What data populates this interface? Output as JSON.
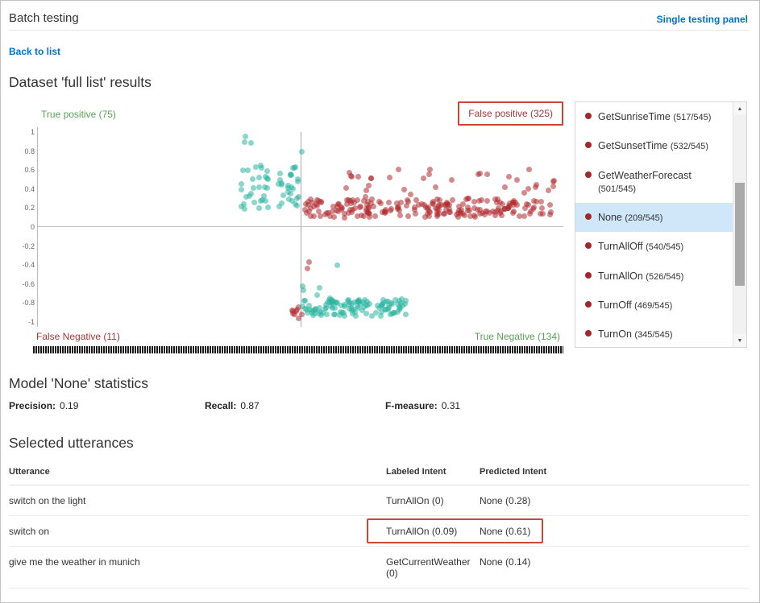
{
  "header": {
    "title": "Batch testing",
    "single_testing_link": "Single testing panel"
  },
  "nav": {
    "back_link": "Back to list"
  },
  "results": {
    "heading": "Dataset 'full list' results"
  },
  "chart": {
    "quadrants": {
      "true_positive": "True positive (75)",
      "false_positive": "False positive (325)",
      "false_negative": "False Negative (11)",
      "true_negative": "True Negative (134)"
    },
    "y_ticks": [
      "1",
      "0.8",
      "0.6",
      "0.4",
      "0.2",
      "0",
      "-0.2",
      "-0.4",
      "-0.6",
      "-0.8",
      "-1"
    ]
  },
  "chart_data": {
    "type": "scatter",
    "x_range": [
      0,
      1
    ],
    "y_range": [
      -1,
      1
    ],
    "quadrant_counts": {
      "true_positive": 75,
      "false_positive": 325,
      "false_negative": 11,
      "true_negative": 134
    },
    "clusters": [
      {
        "name": "true-positive-left-blob",
        "color": "teal",
        "count": 30,
        "x": [
          0.385,
          0.445
        ],
        "y": [
          0.18,
          0.65
        ]
      },
      {
        "name": "true-positive-right-blob",
        "color": "teal",
        "count": 28,
        "x": [
          0.455,
          0.5
        ],
        "y": [
          0.2,
          0.65
        ]
      },
      {
        "name": "true-positive-high-outliers",
        "color": "teal",
        "count": 3,
        "x": [
          0.39,
          0.41
        ],
        "y": [
          0.8,
          0.95
        ]
      },
      {
        "name": "true-positive-center-high",
        "color": "teal",
        "count": 1,
        "x": [
          0.5,
          0.505
        ],
        "y": [
          0.78,
          0.82
        ]
      },
      {
        "name": "false-positive-band",
        "color": "red",
        "count": 215,
        "x": [
          0.505,
          0.98
        ],
        "y": [
          0.1,
          0.3
        ]
      },
      {
        "name": "false-positive-upper",
        "color": "red",
        "count": 35,
        "x": [
          0.58,
          0.985
        ],
        "y": [
          0.3,
          0.62
        ]
      },
      {
        "name": "false-negative-mid",
        "color": "red",
        "count": 2,
        "x": [
          0.505,
          0.55
        ],
        "y": [
          -0.5,
          -0.35
        ]
      },
      {
        "name": "false-negative-bottom",
        "color": "red",
        "count": 9,
        "x": [
          0.483,
          0.507
        ],
        "y": [
          -0.97,
          -0.82
        ]
      },
      {
        "name": "true-negative-band",
        "color": "teal",
        "count": 115,
        "x": [
          0.502,
          0.7
        ],
        "y": [
          -0.94,
          -0.76
        ]
      },
      {
        "name": "true-negative-strays",
        "color": "teal",
        "count": 5,
        "x": [
          0.502,
          0.56
        ],
        "y": [
          -0.76,
          -0.62
        ]
      },
      {
        "name": "true-negative-outlier",
        "color": "teal",
        "count": 1,
        "x": [
          0.565,
          0.575
        ],
        "y": [
          -0.42,
          -0.4
        ]
      }
    ]
  },
  "intent_list": {
    "items": [
      {
        "label": "GetSunriseTime",
        "count": "(517/545)",
        "selected": false
      },
      {
        "label": "GetSunsetTime",
        "count": "(532/545)",
        "selected": false
      },
      {
        "label": "GetWeatherForecast",
        "count": "(501/545)",
        "selected": false
      },
      {
        "label": "None",
        "count": "(209/545)",
        "selected": true
      },
      {
        "label": "TurnAllOff",
        "count": "(540/545)",
        "selected": false
      },
      {
        "label": "TurnAllOn",
        "count": "(526/545)",
        "selected": false
      },
      {
        "label": "TurnOff",
        "count": "(469/545)",
        "selected": false
      },
      {
        "label": "TurnOn",
        "count": "(345/545)",
        "selected": false
      }
    ]
  },
  "stats": {
    "heading": "Model 'None' statistics",
    "metrics": [
      {
        "label": "Precision:",
        "value": "0.19"
      },
      {
        "label": "Recall:",
        "value": "0.87"
      },
      {
        "label": "F-measure:",
        "value": "0.31"
      }
    ]
  },
  "utterances": {
    "heading": "Selected utterances",
    "columns": [
      "Utterance",
      "Labeled Intent",
      "Predicted Intent"
    ],
    "rows": [
      {
        "utterance": "switch on the light",
        "labeled": "TurnAllOn (0)",
        "predicted": "None (0.28)",
        "highlighted": false
      },
      {
        "utterance": "switch on",
        "labeled": "TurnAllOn (0.09)",
        "predicted": "None (0.61)",
        "highlighted": true
      },
      {
        "utterance": "give me the weather in munich",
        "labeled": "GetCurrentWeather (0)",
        "predicted": "None (0.14)",
        "highlighted": false
      }
    ]
  },
  "icons": {
    "scroll_up": "▲",
    "scroll_down": "▼"
  },
  "theme": {
    "link_blue": "#0072c6",
    "heading_gray": "#333333",
    "label_green": "#57a357",
    "label_red": "#a4373a",
    "dot_teal": "#2ab5a0",
    "dot_red": "#b02b30",
    "box_red": "#d04437",
    "select_blue": "#cfe7f8",
    "bullet_red": "#a1272c"
  }
}
